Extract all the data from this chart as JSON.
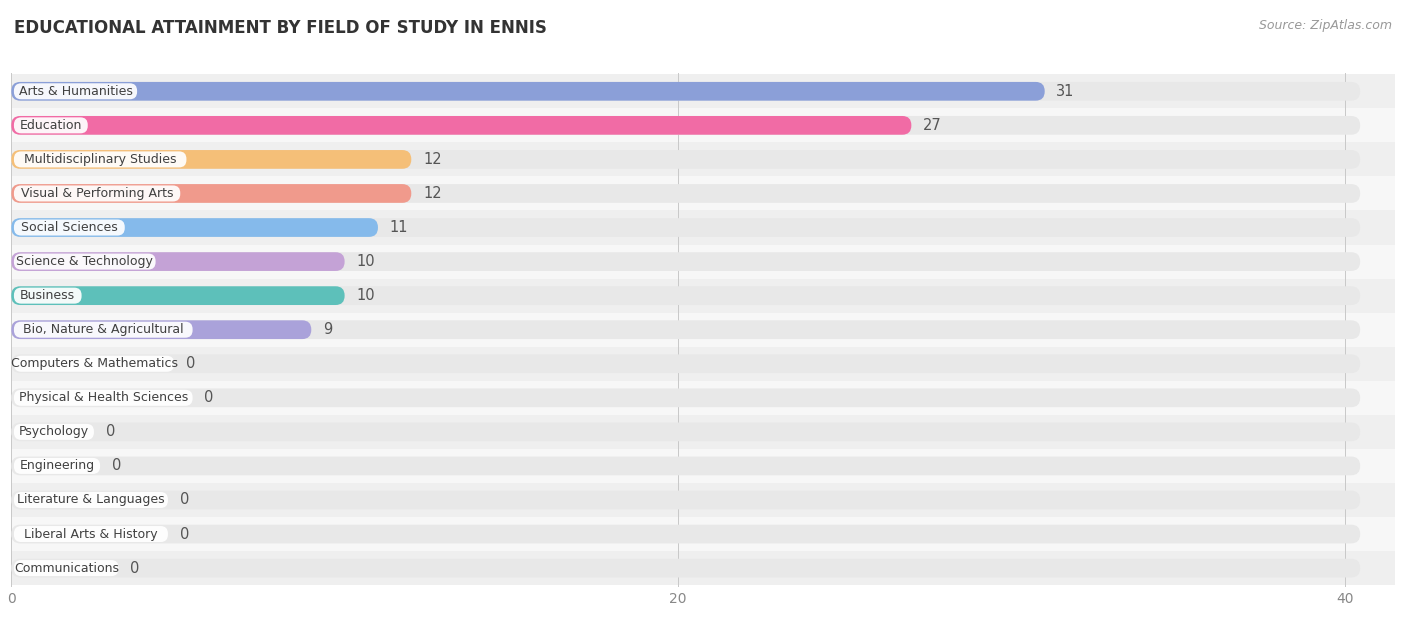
{
  "title": "EDUCATIONAL ATTAINMENT BY FIELD OF STUDY IN ENNIS",
  "source": "Source: ZipAtlas.com",
  "categories": [
    "Arts & Humanities",
    "Education",
    "Multidisciplinary Studies",
    "Visual & Performing Arts",
    "Social Sciences",
    "Science & Technology",
    "Business",
    "Bio, Nature & Agricultural",
    "Computers & Mathematics",
    "Physical & Health Sciences",
    "Psychology",
    "Engineering",
    "Literature & Languages",
    "Liberal Arts & History",
    "Communications"
  ],
  "values": [
    31,
    27,
    12,
    12,
    11,
    10,
    10,
    9,
    0,
    0,
    0,
    0,
    0,
    0,
    0
  ],
  "bar_colors": [
    "#8B9FD8",
    "#F16BA5",
    "#F5BF78",
    "#F09A8C",
    "#85BAEB",
    "#C4A2D6",
    "#5DC0BA",
    "#AAA2DA",
    "#F090AE",
    "#F5C98C",
    "#F0AA9A",
    "#A2BAEC",
    "#CAA8DA",
    "#70D0CA",
    "#AAAADA"
  ],
  "xlim_max": 41.5,
  "xticks": [
    0,
    20,
    40
  ],
  "background_color": "#ffffff",
  "row_bg_light": "#f7f7f7",
  "row_bg_dark": "#efefef",
  "full_pill_color": "#e8e8e8",
  "title_fontsize": 12,
  "tick_fontsize": 10,
  "cat_fontsize": 9,
  "val_fontsize": 10.5
}
